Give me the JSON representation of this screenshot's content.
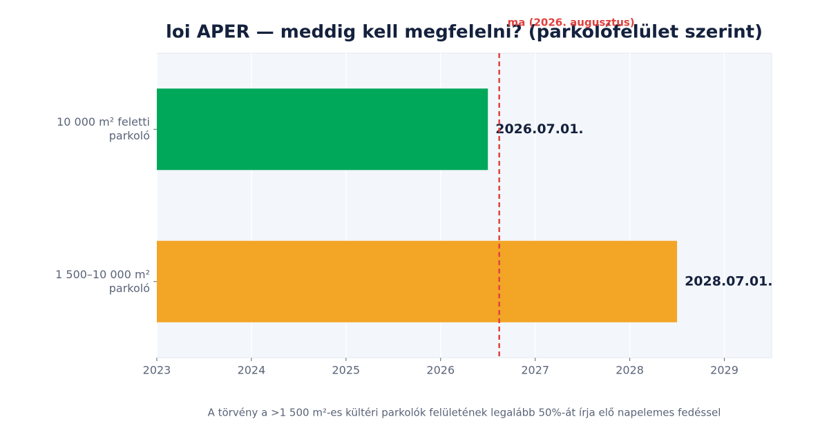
{
  "chart_data": {
    "type": "bar",
    "orientation": "horizontal",
    "title": "loi APER — meddig kell megfelelni? (parkolófelület szerint)",
    "categories": [
      "10 000 m² feletti parkoló",
      "1 500–10 000 m² parkoló"
    ],
    "values": [
      2026.5,
      2028.5
    ],
    "value_labels": [
      "2026.07.01.",
      "2028.07.01."
    ],
    "colors": [
      "#00a85a",
      "#f3a526"
    ],
    "xlim": [
      2023,
      2029.5
    ],
    "xticks": [
      2023,
      2024,
      2025,
      2026,
      2027,
      2028,
      2029
    ],
    "grid": true,
    "reference_line": {
      "value": 2026.62,
      "label": "ma (2026. augusztus)",
      "color": "#e0413e"
    },
    "footnote": "A törvény a >1 500 m²-es kültéri parkolók felületének legalább 50%-át írja elő napelemes fedéssel"
  }
}
